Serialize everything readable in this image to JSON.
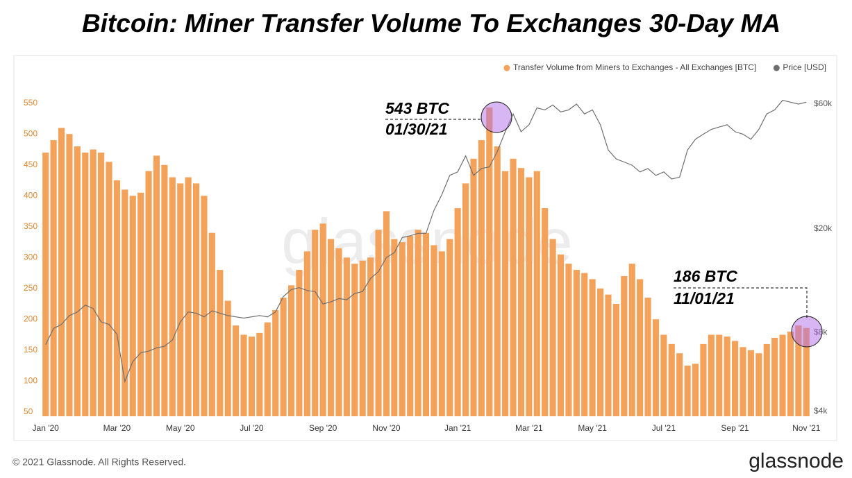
{
  "chart_data": {
    "type": "bar",
    "title": "Bitcoin: Miner Transfer Volume To Exchanges 30-Day MA",
    "footer": "© 2021 Glassnode. All Rights Reserved.",
    "logo": "glassnode",
    "watermark": "glassnode",
    "annotations": [
      "543 BTC",
      "01/30/21",
      "186 BTC",
      "11/01/21"
    ],
    "categories": [
      "Jan '20",
      null,
      null,
      null,
      null,
      null,
      null,
      null,
      null,
      "Mar '20",
      null,
      null,
      null,
      null,
      null,
      null,
      null,
      "May '20",
      null,
      null,
      null,
      null,
      null,
      null,
      null,
      null,
      "Jul '20",
      null,
      null,
      null,
      null,
      null,
      null,
      null,
      null,
      "Sep '20",
      null,
      null,
      null,
      null,
      null,
      null,
      null,
      "Nov '20",
      null,
      null,
      null,
      null,
      null,
      null,
      null,
      null,
      "Jan '21",
      null,
      null,
      null,
      null,
      null,
      null,
      null,
      null,
      "Mar '21",
      null,
      null,
      null,
      null,
      null,
      null,
      null,
      "May '21",
      null,
      null,
      null,
      null,
      null,
      null,
      null,
      null,
      "Jul '21",
      null,
      null,
      null,
      null,
      null,
      null,
      null,
      null,
      "Sep '21",
      null,
      null,
      null,
      null,
      null,
      null,
      null,
      null,
      "Nov '21"
    ],
    "series": [
      {
        "name": "Transfer Volume from Miners to Exchanges - All Exchanges [BTC]",
        "color": "#f4a25a",
        "values": [
          470,
          490,
          510,
          500,
          480,
          470,
          475,
          470,
          455,
          425,
          410,
          400,
          405,
          440,
          465,
          450,
          430,
          420,
          430,
          420,
          400,
          340,
          280,
          230,
          190,
          175,
          172,
          178,
          195,
          215,
          235,
          255,
          280,
          310,
          345,
          355,
          330,
          315,
          300,
          290,
          295,
          300,
          345,
          375,
          330,
          325,
          335,
          345,
          340,
          320,
          310,
          330,
          380,
          420,
          460,
          490,
          543,
          480,
          440,
          460,
          445,
          430,
          440,
          380,
          330,
          305,
          290,
          280,
          275,
          265,
          250,
          240,
          225,
          270,
          290,
          265,
          235,
          200,
          175,
          160,
          145,
          125,
          128,
          160,
          175,
          175,
          172,
          165,
          155,
          150,
          145,
          160,
          170,
          175,
          180,
          190,
          186
        ]
      },
      {
        "name": "Price [USD]",
        "color": "#6e6e6e",
        "axis": "y2",
        "type": "line",
        "values": [
          7200,
          8300,
          8600,
          9300,
          9600,
          10200,
          9900,
          8800,
          8600,
          7900,
          5200,
          6200,
          6700,
          6800,
          7000,
          7100,
          7500,
          8800,
          9600,
          9500,
          9200,
          9700,
          9500,
          9300,
          9200,
          9100,
          9200,
          9300,
          9200,
          9600,
          11000,
          11700,
          11900,
          11600,
          11500,
          10300,
          10500,
          10800,
          10700,
          11300,
          11500,
          12900,
          13700,
          15500,
          16200,
          18500,
          18800,
          19200,
          19200,
          23500,
          27000,
          32000,
          33000,
          38000,
          32000,
          34000,
          34500,
          39500,
          47000,
          55000,
          47000,
          50000,
          58000,
          57000,
          59500,
          56000,
          57000,
          60000,
          55000,
          57000,
          50000,
          40000,
          37000,
          36000,
          35000,
          33000,
          34000,
          32000,
          33000,
          31000,
          31500,
          40000,
          44000,
          46000,
          48000,
          49000,
          50000,
          47000,
          46000,
          44000,
          48000,
          55000,
          57000,
          62000,
          61000,
          60000,
          61000
        ]
      }
    ],
    "ylim": [
      43,
      571
    ],
    "yticks": [
      50,
      100,
      150,
      200,
      250,
      300,
      350,
      400,
      450,
      500,
      550
    ],
    "y2lim": [
      3830,
      67800
    ],
    "y2scale": "log",
    "y2ticks": [
      {
        "value": 4000,
        "label": "$4k"
      },
      {
        "value": 8000,
        "label": "$8k"
      },
      {
        "value": 20000,
        "label": "$20k"
      },
      {
        "value": 60000,
        "label": "$60k"
      }
    ],
    "legend": "top-right"
  }
}
